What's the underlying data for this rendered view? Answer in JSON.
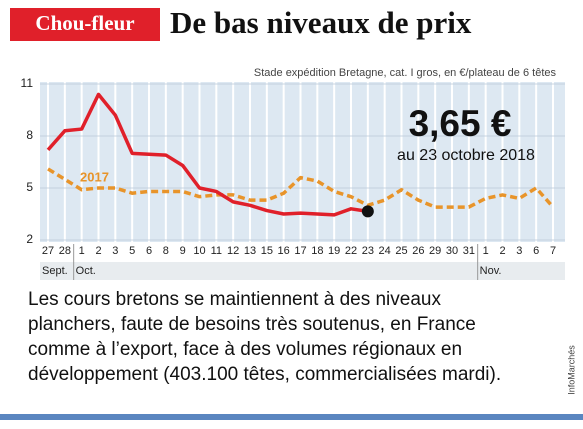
{
  "chart_data": {
    "type": "line",
    "label": "Chou-fleur",
    "title": "De bas niveaux de prix",
    "subtitle": "Stade expédition Bretagne, cat. I gros, en €/plateau de 6 têtes",
    "annotation": {
      "value": "3,65 €",
      "text": "au 23 octobre 2018"
    },
    "categories": [
      "27",
      "28",
      "1",
      "2",
      "3",
      "5",
      "6",
      "8",
      "9",
      "10",
      "11",
      "12",
      "13",
      "15",
      "16",
      "17",
      "18",
      "19",
      "22",
      "23",
      "24",
      "25",
      "26",
      "29",
      "30",
      "31",
      "1",
      "2",
      "3",
      "6",
      "7"
    ],
    "months": [
      {
        "label": "Sept.",
        "start": 0
      },
      {
        "label": "Oct.",
        "start": 2
      },
      {
        "label": "Nov.",
        "start": 26
      }
    ],
    "series": [
      {
        "color": "#e0202a",
        "values": [
          7.2,
          8.3,
          8.4,
          10.4,
          9.2,
          7.0,
          6.95,
          6.9,
          6.3,
          5.0,
          4.8,
          4.2,
          4.0,
          3.7,
          3.5,
          3.55,
          3.5,
          3.45,
          3.8,
          3.65,
          null,
          null,
          null,
          null,
          null,
          null,
          null,
          null,
          null,
          null,
          null
        ]
      },
      {
        "name": "2017",
        "color": "#e8942a",
        "values": [
          6.1,
          5.5,
          4.9,
          5.0,
          5.0,
          4.7,
          4.8,
          4.8,
          4.8,
          4.5,
          4.6,
          4.6,
          4.3,
          4.3,
          4.7,
          5.6,
          5.4,
          4.8,
          4.5,
          4.0,
          4.3,
          4.9,
          4.3,
          3.9,
          3.9,
          3.9,
          4.4,
          4.6,
          4.4,
          5.0,
          3.9
        ]
      }
    ],
    "ylim": [
      2,
      11
    ],
    "yticks": [
      2,
      5,
      8,
      11
    ],
    "grid": true,
    "body": [
      "Les cours bretons se maintiennent à des niveaux",
      "planchers, faute de besoins très soutenus, en France",
      "comme à l’export, face à des volumes régionaux en",
      "développement (403.100 têtes, commercialisées mardi)."
    ],
    "credit": "InfoMarchés"
  }
}
